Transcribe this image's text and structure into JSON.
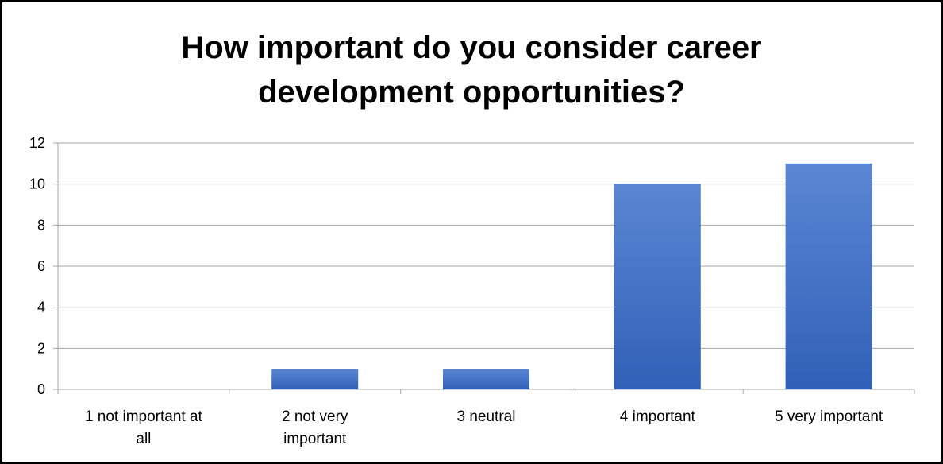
{
  "chart_data": {
    "type": "bar",
    "title_lines": [
      "How important do you consider career",
      "development opportunities?"
    ],
    "categories": [
      [
        "1 not important at",
        "all"
      ],
      [
        "2 not very",
        "important"
      ],
      [
        "3 neutral"
      ],
      [
        "4 important"
      ],
      [
        "5 very important"
      ]
    ],
    "values": [
      0,
      1,
      1,
      10,
      11
    ],
    "yticks": [
      "0",
      "2",
      "4",
      "6",
      "8",
      "10",
      "12"
    ],
    "ylim": [
      0,
      12
    ],
    "grid": true,
    "legend": "none",
    "bar_color_top": "#5b86d3",
    "bar_color_bottom": "#3060b8",
    "gridline_color": "#a6a6a6"
  }
}
